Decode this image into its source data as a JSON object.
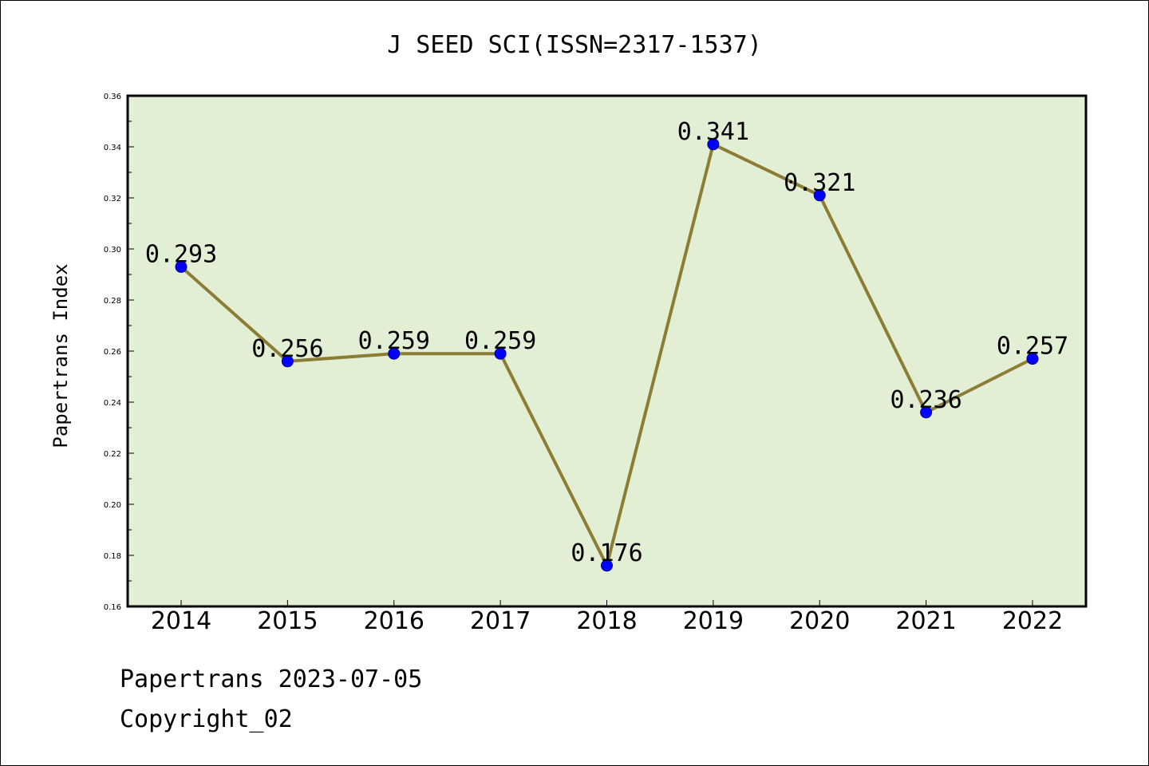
{
  "chart_data": {
    "type": "line",
    "title": "J SEED SCI(ISSN=2317-1537)",
    "xlabel": "",
    "ylabel": "Papertrans Index",
    "categories": [
      "2014",
      "2015",
      "2016",
      "2017",
      "2018",
      "2019",
      "2020",
      "2021",
      "2022"
    ],
    "values": [
      0.293,
      0.256,
      0.259,
      0.259,
      0.176,
      0.341,
      0.321,
      0.236,
      0.257
    ],
    "data_labels": [
      "0.293",
      "0.256",
      "0.259",
      "0.259",
      "0.176",
      "0.341",
      "0.321",
      "0.236",
      "0.257"
    ],
    "ylim": [
      0.16,
      0.36
    ],
    "yticks": [
      "0.16",
      "0.18",
      "0.20",
      "0.22",
      "0.24",
      "0.26",
      "0.28",
      "0.30",
      "0.32",
      "0.34",
      "0.36"
    ],
    "grid": false,
    "colors": {
      "plot_background": "#e2efd4",
      "line": "#8b7d35",
      "marker": "#0000ff"
    }
  },
  "footer": {
    "line1": "Papertrans 2023-07-05",
    "line2": "Copyright_02"
  }
}
